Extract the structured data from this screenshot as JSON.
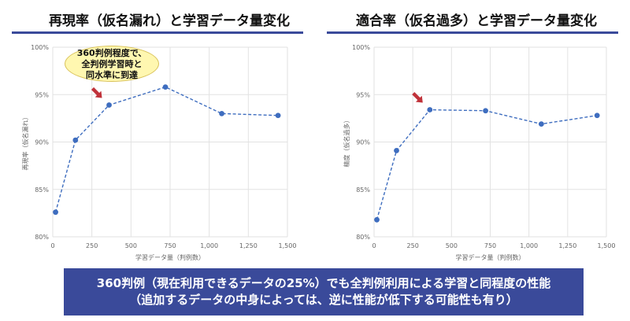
{
  "left_panel": {
    "title": "再現率（仮名漏れ）と学習データ量変化",
    "callout_lines": [
      "360判例程度で、",
      "全判例学習時と",
      "同水準に到達"
    ]
  },
  "right_panel": {
    "title": "適合率（仮名過多）と学習データ量変化"
  },
  "bottom_message": {
    "line1": "360判例（現在利用できるデータの25%）でも全判例利用による学習と同程度の性能",
    "line2": "（追加するデータの中身によっては、逆に性能が低下する可能性も有り）"
  },
  "colors": {
    "series": "#3e6dbf",
    "accent_band": "#3a4a9a",
    "arrow": "#c0323a",
    "callout_fill": "#fff7b0"
  },
  "chart_data": [
    {
      "type": "line",
      "title": "再現率（仮名漏れ）と学習データ量変化",
      "xlabel": "学習データ量（判例数）",
      "ylabel": "再現率（仮名漏れ）",
      "xlim": [
        0,
        1500
      ],
      "ylim": [
        80,
        100
      ],
      "x_ticks": [
        "0",
        "250",
        "500",
        "750",
        "1,000",
        "1,250",
        "1,500"
      ],
      "y_ticks": [
        "80%",
        "85%",
        "90%",
        "95%",
        "100%"
      ],
      "grid": true,
      "series": [
        {
          "x": [
            18,
            145,
            360,
            720,
            1080,
            1440
          ],
          "y": [
            82.6,
            90.2,
            93.9,
            95.8,
            93.0,
            92.8
          ]
        }
      ],
      "arrow_at_x": 360
    },
    {
      "type": "line",
      "title": "適合率（仮名過多）と学習データ量変化",
      "xlabel": "学習データ量（判例数）",
      "ylabel": "精度（仮名過多）",
      "xlim": [
        0,
        1500
      ],
      "ylim": [
        80,
        100
      ],
      "x_ticks": [
        "0",
        "250",
        "500",
        "750",
        "1,000",
        "1,250",
        "1,500"
      ],
      "y_ticks": [
        "80%",
        "85%",
        "90%",
        "95%",
        "100%"
      ],
      "grid": true,
      "series": [
        {
          "x": [
            18,
            145,
            360,
            720,
            1080,
            1440
          ],
          "y": [
            81.8,
            89.1,
            93.4,
            93.3,
            91.9,
            92.8
          ]
        }
      ],
      "arrow_at_x": 360
    }
  ]
}
